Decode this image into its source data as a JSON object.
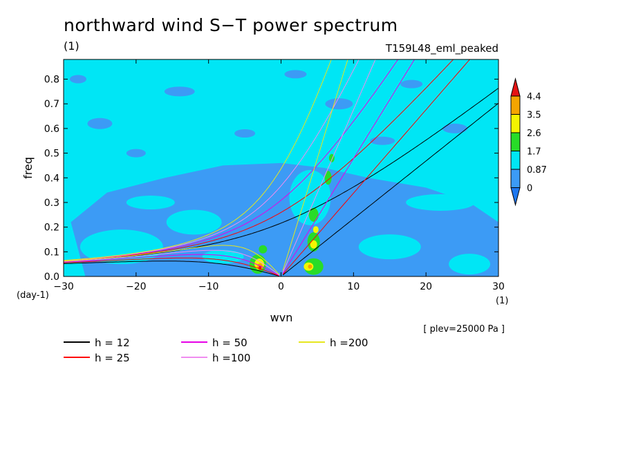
{
  "title": "northward wind S−T power spectrum",
  "units": "(1)",
  "experiment": "T159L48_eml_peaked",
  "level_note": "[ plev=25000 Pa ]",
  "chart_data": {
    "type": "heatmap",
    "xlabel": "wvn",
    "ylabel": "freq",
    "x_unit": "(1)",
    "y_unit": "(day-1)",
    "xlim": [
      -30,
      30
    ],
    "ylim": [
      0,
      0.88
    ],
    "x_ticks": [
      -30,
      -20,
      -10,
      0,
      10,
      20,
      30
    ],
    "y_ticks": [
      0.0,
      0.1,
      0.2,
      0.3,
      0.4,
      0.5,
      0.6,
      0.7,
      0.8
    ],
    "colorbar": {
      "levels": [
        "0",
        "0.87",
        "1.7",
        "2.6",
        "3.5",
        "4.4"
      ],
      "colors": [
        "#1e78f0",
        "#3c9bf5",
        "#00e6f5",
        "#28dc28",
        "#f5f500",
        "#f5a500",
        "#e61414"
      ],
      "extend": "both"
    },
    "dispersion_curves": [
      {
        "name": "h = 12",
        "color": "#000000"
      },
      {
        "name": "h = 25",
        "color": "#ff0000"
      },
      {
        "name": "h = 50",
        "color": "#e600e6"
      },
      {
        "name": "h =100",
        "color": "#f08cf0"
      },
      {
        "name": "h =200",
        "color": "#e6e61e"
      }
    ],
    "legend_position": "bottom-left"
  }
}
